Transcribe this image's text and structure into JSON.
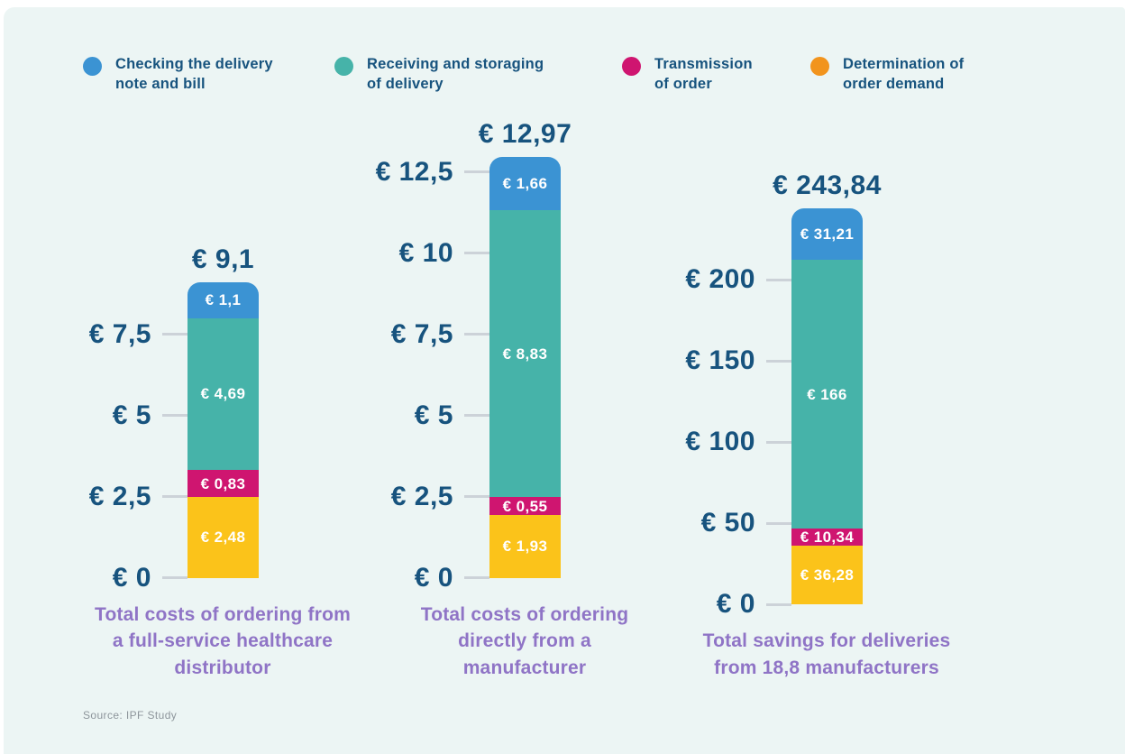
{
  "colors": {
    "panel_bg": "#ecf5f4",
    "navy": "#17537e",
    "purple": "#8f74c6",
    "tick": "#ccd2d8",
    "source_gray": "#8d959b",
    "blue": "#3b93d3",
    "teal": "#46b3a9",
    "magenta": "#cf1570",
    "yellow": "#fbc31a",
    "legend_orange": "#f2941d"
  },
  "legend": {
    "items": [
      {
        "label": "Checking the delivery note and bill",
        "color": "#3b93d3"
      },
      {
        "label": "Receiving and storaging of delivery",
        "color": "#46b3a9"
      },
      {
        "label": "Transmission of order",
        "color": "#cf1570"
      },
      {
        "label": "Determination of order demand",
        "color": "#f2941d"
      }
    ]
  },
  "source": "Source: IPF Study",
  "chart_data": {
    "type": "bar",
    "subtype": "stacked-vertical",
    "unit": "EUR",
    "legend_position": "top",
    "grid": false,
    "series_order_top_to_bottom": [
      "Checking the delivery note and bill",
      "Receiving and storaging of delivery",
      "Transmission of order",
      "Determination of order demand"
    ],
    "charts": [
      {
        "caption": "Total costs of ordering from a full-service healthcare distributor",
        "total": {
          "value": 9.1,
          "label": "€ 9,1"
        },
        "ylim": [
          0,
          9.1
        ],
        "y_ticks": [
          {
            "label": "€ 7,5",
            "value": 7.5
          },
          {
            "label": "€ 5",
            "value": 5
          },
          {
            "label": "€ 2,5",
            "value": 2.5
          },
          {
            "label": "€ 0",
            "value": 0
          }
        ],
        "segments": [
          {
            "name": "Checking the delivery note and bill",
            "label": "€ 1,1",
            "value": 1.1,
            "color": "#3b93d3"
          },
          {
            "name": "Receiving and storaging of delivery",
            "label": "€ 4,69",
            "value": 4.69,
            "color": "#46b3a9"
          },
          {
            "name": "Transmission of order",
            "label": "€ 0,83",
            "value": 0.83,
            "color": "#cf1570"
          },
          {
            "name": "Determination of order demand",
            "label": "€ 2,48",
            "value": 2.48,
            "color": "#fbc31a"
          }
        ]
      },
      {
        "caption": "Total costs of ordering directly from a manufacturer",
        "total": {
          "value": 12.97,
          "label": "€ 12,97"
        },
        "ylim": [
          0,
          12.97
        ],
        "y_ticks": [
          {
            "label": "€ 12,5",
            "value": 12.5
          },
          {
            "label": "€ 10",
            "value": 10
          },
          {
            "label": "€ 7,5",
            "value": 7.5
          },
          {
            "label": "€ 5",
            "value": 5
          },
          {
            "label": "€ 2,5",
            "value": 2.5
          },
          {
            "label": "€ 0",
            "value": 0
          }
        ],
        "segments": [
          {
            "name": "Checking the delivery note and bill",
            "label": "€ 1,66",
            "value": 1.66,
            "color": "#3b93d3"
          },
          {
            "name": "Receiving and storaging of delivery",
            "label": "€ 8,83",
            "value": 8.83,
            "color": "#46b3a9"
          },
          {
            "name": "Transmission of order",
            "label": "€ 0,55",
            "value": 0.55,
            "color": "#cf1570"
          },
          {
            "name": "Determination of order demand",
            "label": "€ 1,93",
            "value": 1.93,
            "color": "#fbc31a"
          }
        ]
      },
      {
        "caption": "Total savings for deliveries from 18,8 manufacturers",
        "total": {
          "value": 243.84,
          "label": "€ 243,84"
        },
        "ylim": [
          0,
          243.84
        ],
        "y_ticks": [
          {
            "label": "€ 200",
            "value": 200
          },
          {
            "label": "€ 150",
            "value": 150
          },
          {
            "label": "€ 100",
            "value": 100
          },
          {
            "label": "€ 50",
            "value": 50
          },
          {
            "label": "€ 0",
            "value": 0
          }
        ],
        "segments": [
          {
            "name": "Checking the delivery note and bill",
            "label": "€ 31,21",
            "value": 31.21,
            "color": "#3b93d3"
          },
          {
            "name": "Receiving and storaging of delivery",
            "label": "€ 166",
            "value": 166,
            "color": "#46b3a9"
          },
          {
            "name": "Transmission of order",
            "label": "€ 10,34",
            "value": 10.34,
            "color": "#cf1570"
          },
          {
            "name": "Determination of order demand",
            "label": "€ 36,28",
            "value": 36.28,
            "color": "#fbc31a"
          }
        ]
      }
    ]
  }
}
